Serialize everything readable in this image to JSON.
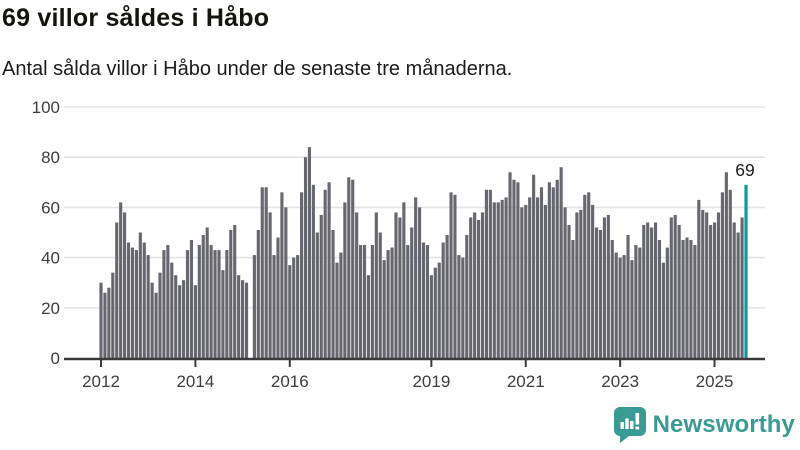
{
  "header": {
    "title": "69 villor såldes i Håbo",
    "subtitle": "Antal sålda villor i Håbo under de senaste tre månaderna."
  },
  "chart_data": {
    "type": "bar",
    "title": "69 villor såldes i Håbo",
    "subtitle": "Antal sålda villor i Håbo under de senaste tre månaderna.",
    "unit": "sålda villor (rullande 3 månader)",
    "frequency": "monthly",
    "x_start": "2012-01",
    "x_end": "2025-09",
    "x_start_year": 2012,
    "values": [
      30,
      26,
      28,
      34,
      54,
      62,
      58,
      46,
      44,
      43,
      50,
      46,
      41,
      30,
      26,
      34,
      43,
      45,
      38,
      33,
      29,
      31,
      43,
      47,
      29,
      45,
      49,
      52,
      45,
      43,
      43,
      35,
      43,
      51,
      53,
      33,
      31,
      30,
      null,
      41,
      51,
      68,
      68,
      58,
      41,
      48,
      66,
      60,
      37,
      40,
      41,
      66,
      80,
      84,
      69,
      50,
      57,
      67,
      70,
      51,
      38,
      42,
      62,
      72,
      71,
      58,
      45,
      45,
      33,
      45,
      58,
      50,
      39,
      43,
      44,
      58,
      56,
      62,
      45,
      52,
      64,
      60,
      46,
      45,
      33,
      36,
      38,
      46,
      49,
      66,
      65,
      41,
      40,
      49,
      56,
      58,
      55,
      58,
      67,
      67,
      62,
      62,
      63,
      64,
      74,
      71,
      70,
      60,
      61,
      64,
      73,
      64,
      68,
      61,
      70,
      68,
      71,
      76,
      60,
      53,
      47,
      58,
      59,
      65,
      66,
      61,
      52,
      51,
      56,
      57,
      47,
      42,
      40,
      41,
      49,
      39,
      45,
      44,
      53,
      54,
      52,
      54,
      47,
      38,
      44,
      56,
      57,
      53,
      47,
      48,
      47,
      45,
      63,
      59,
      58,
      53,
      54,
      58,
      66,
      74,
      67,
      54,
      50,
      56,
      69
    ],
    "highlight_index": 164,
    "annotation_label": "69",
    "ylim": [
      0,
      100
    ],
    "y_ticks": [
      0,
      20,
      40,
      60,
      80,
      100
    ],
    "x_tick_years": [
      "2012",
      "2014",
      "2016",
      "2019",
      "2021",
      "2023",
      "2025"
    ],
    "grid": true,
    "legend_position": "none",
    "colors": {
      "bar": "#67676f",
      "highlight": "#0a99a2",
      "grid": "#e4e4e4",
      "axis": "#3a3a3a",
      "tick_text": "#3d3d3d",
      "annotation_text": "#1a1a1a"
    }
  },
  "footer": {
    "brand": "Newsworthy",
    "logo": "newsworthy-bar-chart-speech-bubble",
    "brand_color": "#3a9a94"
  }
}
